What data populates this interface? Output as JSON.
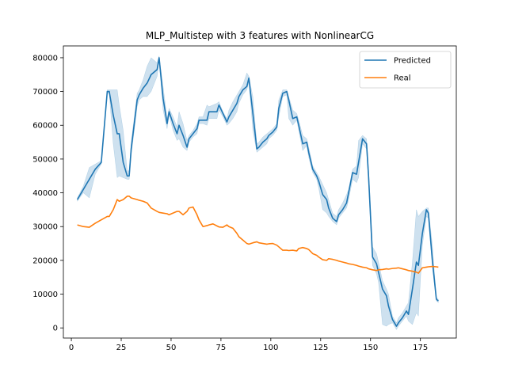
{
  "chart_data": {
    "type": "line",
    "title": "MLP_Multistep with 3 features with NonlinearCG",
    "xlabel": "",
    "ylabel": "",
    "xlim": [
      -4,
      193
    ],
    "ylim": [
      -3000,
      83500
    ],
    "xticks": [
      "0",
      "25",
      "50",
      "75",
      "100",
      "125",
      "150",
      "175"
    ],
    "yticks": [
      "0",
      "10000",
      "20000",
      "30000",
      "40000",
      "50000",
      "60000",
      "70000",
      "80000"
    ],
    "grid": false,
    "legend_position": "upper right",
    "series": [
      {
        "name": "Predicted",
        "color": "#1f77b4",
        "x": [
          3,
          6,
          9,
          12,
          15,
          18,
          19,
          21,
          23,
          24,
          26,
          28,
          29,
          30,
          33,
          34,
          36,
          38,
          40,
          43,
          44,
          46,
          48,
          49,
          51,
          53,
          54,
          56,
          58,
          59,
          61,
          63,
          64,
          66,
          68,
          69,
          71,
          73,
          74,
          76,
          78,
          79,
          81,
          83,
          84,
          86,
          88,
          89,
          91,
          93,
          94,
          96,
          98,
          99,
          101,
          103,
          104,
          106,
          108,
          109,
          111,
          113,
          114,
          116,
          118,
          119,
          121,
          123,
          124,
          126,
          128,
          129,
          131,
          133,
          134,
          136,
          138,
          139,
          141,
          143,
          144,
          146,
          148,
          149,
          151,
          153,
          154,
          156,
          158,
          159,
          161,
          163,
          164,
          166,
          168,
          169,
          171,
          173,
          174,
          176,
          178,
          179,
          181,
          183,
          184
        ],
        "y": [
          38000,
          41000,
          44000,
          47000,
          49000,
          70000,
          70000,
          63000,
          57500,
          57500,
          49000,
          45000,
          45000,
          53000,
          67500,
          69000,
          71000,
          72500,
          75000,
          76500,
          80000,
          68000,
          60500,
          64000,
          60500,
          57500,
          60000,
          57000,
          53500,
          56000,
          57500,
          59000,
          61500,
          61500,
          61500,
          64000,
          64000,
          64000,
          66000,
          63500,
          61000,
          62500,
          64500,
          66500,
          68500,
          70500,
          71500,
          74000,
          63500,
          53000,
          53500,
          55000,
          56000,
          57000,
          58000,
          59500,
          65000,
          69500,
          70000,
          67500,
          62000,
          62500,
          60000,
          54500,
          55000,
          52000,
          47000,
          45000,
          43500,
          39500,
          38000,
          35500,
          32500,
          31500,
          33500,
          35000,
          37000,
          40000,
          46000,
          45500,
          49000,
          56000,
          54500,
          45000,
          21000,
          19000,
          16500,
          11500,
          9500,
          6500,
          2500,
          500,
          1500,
          3000,
          5000,
          4000,
          11500,
          19500,
          18500,
          28000,
          35000,
          34000,
          20000,
          8500,
          8000
        ],
        "ci_upper": [
          38500,
          42000,
          47500,
          48500,
          49500,
          70500,
          70500,
          70500,
          70500,
          66000,
          58500,
          46500,
          46500,
          55000,
          69500,
          70500,
          73500,
          77500,
          80000,
          78500,
          80500,
          71500,
          62000,
          65000,
          62500,
          59500,
          64000,
          60500,
          55500,
          57000,
          58500,
          60500,
          62500,
          62500,
          66000,
          65500,
          66000,
          66500,
          67000,
          64000,
          62000,
          64500,
          67000,
          69000,
          70000,
          72000,
          75500,
          74500,
          68500,
          54500,
          55000,
          56500,
          57500,
          58000,
          59000,
          60500,
          67500,
          70500,
          70500,
          68500,
          64500,
          63500,
          61500,
          57000,
          56000,
          53500,
          48000,
          46000,
          45000,
          42500,
          40000,
          38000,
          34000,
          33000,
          35000,
          37000,
          39500,
          41000,
          47000,
          48000,
          55500,
          57000,
          56000,
          47500,
          24000,
          22000,
          19500,
          14000,
          11500,
          10000,
          3500,
          1500,
          3000,
          4500,
          6500,
          7500,
          19500,
          35000,
          33000,
          34500,
          35500,
          35500,
          24500,
          9000,
          8500
        ],
        "ci_lower": [
          37500,
          40000,
          38500,
          45500,
          48500,
          69500,
          69500,
          54500,
          44500,
          45000,
          44500,
          44000,
          44000,
          51000,
          65500,
          67500,
          68500,
          68500,
          70000,
          74500,
          79000,
          64500,
          59000,
          63000,
          58500,
          55500,
          56000,
          53500,
          52500,
          55000,
          56500,
          57500,
          60500,
          60500,
          60000,
          62000,
          62000,
          62000,
          64500,
          62500,
          60000,
          60500,
          62000,
          64000,
          66500,
          69000,
          70500,
          73000,
          58500,
          52000,
          52500,
          53500,
          54500,
          56000,
          57000,
          58500,
          62500,
          68500,
          69000,
          62000,
          60000,
          61500,
          58500,
          52500,
          54000,
          50500,
          46000,
          44000,
          41500,
          35000,
          34000,
          33000,
          31500,
          30500,
          32500,
          34000,
          35500,
          38000,
          44000,
          43000,
          44500,
          54500,
          53000,
          43000,
          18500,
          16000,
          13500,
          1000,
          500,
          1000,
          1500,
          -500,
          500,
          2000,
          3500,
          2000,
          1000,
          4500,
          3500,
          24500,
          33000,
          32500,
          18000,
          8000,
          7500
        ]
      },
      {
        "name": "Real",
        "color": "#ff7f0e",
        "x": [
          3,
          6,
          9,
          12,
          15,
          18,
          19,
          21,
          23,
          24,
          26,
          28,
          29,
          30,
          33,
          34,
          36,
          38,
          40,
          43,
          44,
          46,
          48,
          49,
          51,
          53,
          54,
          56,
          58,
          59,
          61,
          63,
          64,
          66,
          68,
          69,
          71,
          73,
          74,
          76,
          78,
          79,
          81,
          83,
          84,
          86,
          88,
          89,
          91,
          93,
          94,
          96,
          98,
          99,
          101,
          103,
          104,
          106,
          108,
          109,
          111,
          113,
          114,
          116,
          118,
          119,
          121,
          123,
          124,
          126,
          128,
          129,
          131,
          133,
          134,
          136,
          138,
          139,
          141,
          143,
          144,
          146,
          148,
          149,
          151,
          153,
          154,
          156,
          158,
          159,
          161,
          163,
          164,
          166,
          168,
          169,
          171,
          173,
          174,
          176,
          178,
          179,
          181,
          183,
          184
        ],
        "y": [
          30500,
          30000,
          29800,
          31000,
          32000,
          33000,
          33000,
          35000,
          38000,
          37500,
          38000,
          39000,
          39000,
          38500,
          38000,
          37800,
          37500,
          37000,
          35500,
          34500,
          34200,
          34000,
          33800,
          33500,
          34000,
          34500,
          34500,
          33500,
          34500,
          35500,
          35800,
          33500,
          32000,
          30000,
          30300,
          30500,
          30800,
          30200,
          29900,
          29800,
          30500,
          30000,
          29500,
          28000,
          27000,
          26000,
          25000,
          24800,
          25200,
          25500,
          25200,
          25000,
          24800,
          24900,
          25000,
          24500,
          24000,
          23000,
          23000,
          22900,
          23000,
          22800,
          23500,
          23800,
          23500,
          23200,
          22000,
          21500,
          21000,
          20200,
          20000,
          20500,
          20300,
          20000,
          19800,
          19500,
          19200,
          19000,
          18800,
          18500,
          18300,
          18000,
          17800,
          17500,
          17200,
          17000,
          17200,
          17300,
          17500,
          17400,
          17600,
          17700,
          17800,
          17500,
          17200,
          17000,
          16800,
          16500,
          16200,
          17800,
          18000,
          18100,
          18200,
          18100,
          18000
        ]
      }
    ]
  }
}
